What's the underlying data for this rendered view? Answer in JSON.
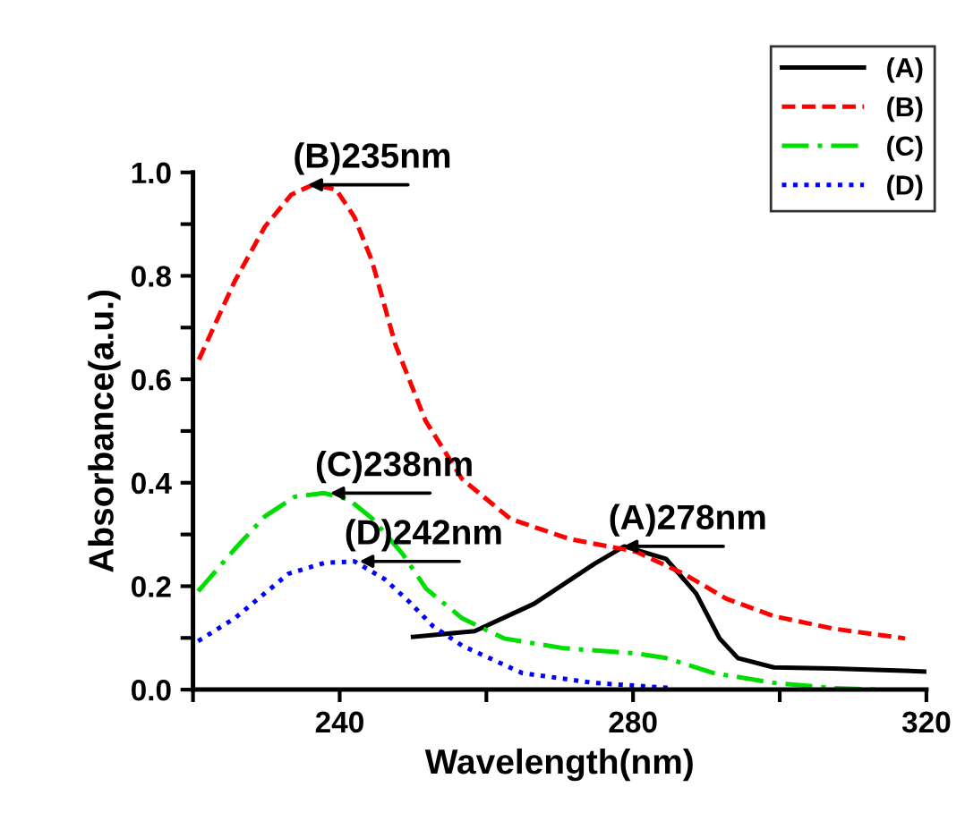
{
  "chart_data": {
    "type": "line",
    "xlabel": "Wavelength(nm)",
    "ylabel": "Absorbance(a.u.)",
    "xlim": [
      220,
      320
    ],
    "ylim": [
      0,
      1.0
    ],
    "xticks": [
      {
        "value": 220,
        "label": null
      },
      240,
      {
        "value": 260,
        "label": null
      },
      280,
      {
        "value": 300,
        "label": null
      },
      320
    ],
    "yticks": [
      {
        "value": 0,
        "label": "0.0"
      },
      {
        "value": 0.1,
        "label": null
      },
      {
        "value": 0.2,
        "label": "0.2"
      },
      {
        "value": 0.3,
        "label": null
      },
      {
        "value": 0.4,
        "label": "0.4"
      },
      {
        "value": 0.5,
        "label": null
      },
      {
        "value": 0.6,
        "label": "0.6"
      },
      {
        "value": 0.7,
        "label": null
      },
      {
        "value": 0.8,
        "label": "0.8"
      },
      {
        "value": 0.9,
        "label": null
      },
      {
        "value": 1.0,
        "label": "1.0"
      }
    ],
    "grid": false,
    "legend": "top right",
    "marker": "none",
    "series": [
      {
        "name": "(A)",
        "color": "#000000",
        "line_style": "solid",
        "x": [
          250,
          258.4,
          266.5,
          274.7,
          278.8,
          284.5,
          288.6,
          291.8,
          294.3,
          299.2,
          307.3,
          320
        ],
        "values": [
          0.102,
          0.113,
          0.166,
          0.243,
          0.277,
          0.253,
          0.186,
          0.099,
          0.061,
          0.043,
          0.041,
          0.035
        ]
      },
      {
        "name": "(B)",
        "color": "#ff0000",
        "line_style": "dashed",
        "x": [
          220.8,
          225.7,
          229.8,
          233.4,
          236.3,
          239.5,
          242,
          244.4,
          247.6,
          251.7,
          256.7,
          263.3,
          271.4,
          280.4,
          286.9,
          292.7,
          299.2,
          307.3,
          317.1
        ],
        "values": [
          0.638,
          0.79,
          0.895,
          0.957,
          0.976,
          0.967,
          0.914,
          0.829,
          0.667,
          0.52,
          0.407,
          0.33,
          0.291,
          0.267,
          0.224,
          0.176,
          0.142,
          0.118,
          0.099
        ]
      },
      {
        "name": "(C)",
        "color": "#00dd00",
        "line_style": "dashdot",
        "x": [
          220.7,
          225.7,
          229.8,
          233.9,
          237.9,
          241.2,
          244.5,
          248.6,
          251.8,
          256.7,
          262.4,
          270.6,
          280.4,
          284.5,
          291,
          299.2,
          307.3,
          313.9
        ],
        "values": [
          0.19,
          0.272,
          0.335,
          0.373,
          0.38,
          0.368,
          0.33,
          0.262,
          0.195,
          0.138,
          0.099,
          0.08,
          0.07,
          0.061,
          0.032,
          0.013,
          0.003,
          0
        ]
      },
      {
        "name": "(D)",
        "color": "#0000ff",
        "line_style": "dotted",
        "x": [
          220.7,
          225.7,
          233,
          237.9,
          242,
          246.1,
          249.4,
          252.7,
          256.7,
          264.9,
          274.7,
          285.3
        ],
        "values": [
          0.094,
          0.138,
          0.224,
          0.245,
          0.248,
          0.214,
          0.171,
          0.123,
          0.085,
          0.032,
          0.013,
          0.003
        ]
      }
    ],
    "annotations": [
      {
        "text": "(B)235nm",
        "x": 235,
        "y": 0.976
      },
      {
        "text": "(C)238nm",
        "x": 238,
        "y": 0.38
      },
      {
        "text": "(D)242nm",
        "x": 242,
        "y": 0.248
      },
      {
        "text": "(A)278nm",
        "x": 278,
        "y": 0.277
      }
    ]
  }
}
